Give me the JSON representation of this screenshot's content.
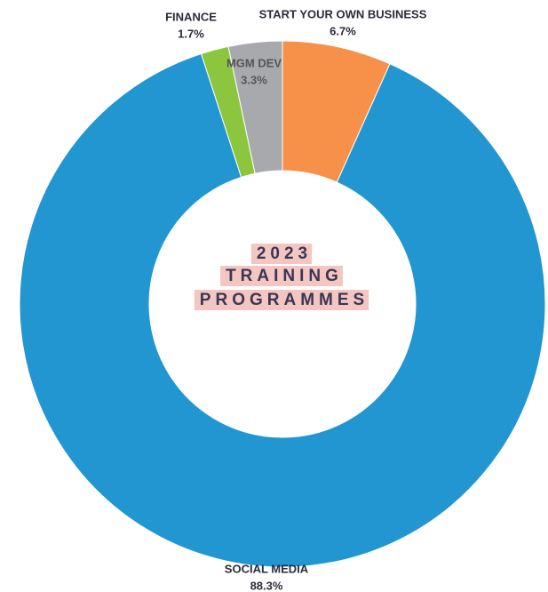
{
  "chart_data": {
    "type": "donut",
    "center_label": [
      "2023",
      "TRAINING",
      "PROGRAMMES"
    ],
    "categories": [
      "START YOUR OWN BUSINESS",
      "SOCIAL MEDIA",
      "FINANCE",
      "MGM DEV"
    ],
    "values": [
      6.7,
      88.3,
      1.7,
      3.3
    ],
    "value_labels": [
      "6.7%",
      "88.3%",
      "1.7%",
      "3.3%"
    ],
    "colors": [
      "#f7914a",
      "#2196d1",
      "#8cc63f",
      "#a7a9ac"
    ]
  }
}
